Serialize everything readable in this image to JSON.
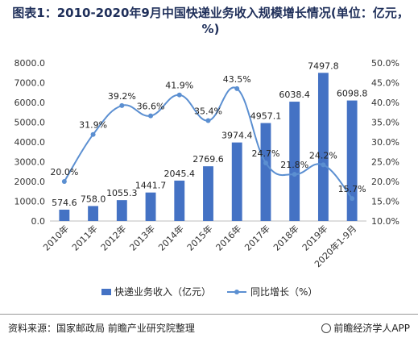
{
  "title": "图表1：2010-2020年9月中国快递业务收入规模增长情况(单位：亿元，%)",
  "footer": {
    "source": "资料来源：国家邮政局 前瞻产业研究院整理",
    "brand": "前瞻经济学人APP",
    "brand_icon": "brand-logo-icon"
  },
  "chart_data": {
    "type": "bar",
    "categories": [
      "2010年",
      "2011年",
      "2012年",
      "2013年",
      "2014年",
      "2015年",
      "2016年",
      "2017年",
      "2018年",
      "2019年",
      "2020年1-9月"
    ],
    "series": [
      {
        "name": "快递业务收入（亿元）",
        "type": "bar",
        "axis": "left",
        "values": [
          574.6,
          758.0,
          1055.3,
          1441.7,
          2045.4,
          2769.6,
          3974.4,
          4957.1,
          6038.4,
          7497.8,
          6098.8
        ],
        "labels": [
          "574.6",
          "758.0",
          "1055.3",
          "1441.7",
          "2045.4",
          "2769.6",
          "3974.4",
          "4957.1",
          "6038.4",
          "7497.8",
          "6098.8"
        ],
        "color": "#4472c4"
      },
      {
        "name": "同比增长（%）",
        "type": "line",
        "axis": "right",
        "values": [
          20.0,
          31.9,
          39.2,
          36.6,
          41.9,
          35.4,
          43.5,
          24.7,
          21.8,
          24.2,
          15.7
        ],
        "labels": [
          "20.0%",
          "31.9%",
          "39.2%",
          "36.6%",
          "41.9%",
          "35.4%",
          "43.5%",
          "24.7%",
          "21.8%",
          "24.2%",
          "15.7%"
        ],
        "color": "#5b8fd1"
      }
    ],
    "y_left": {
      "ylim": [
        0,
        8000
      ],
      "ticks": [
        0,
        1000,
        2000,
        3000,
        4000,
        5000,
        6000,
        7000,
        8000
      ],
      "tick_labels": [
        "0.0",
        "1000.0",
        "2000.0",
        "3000.0",
        "4000.0",
        "5000.0",
        "6000.0",
        "7000.0",
        "8000.0"
      ]
    },
    "y_right": {
      "ylim": [
        10,
        50
      ],
      "ticks": [
        10,
        15,
        20,
        25,
        30,
        35,
        40,
        45,
        50
      ],
      "tick_labels": [
        "10.0%",
        "15.0%",
        "20.0%",
        "25.0%",
        "30.0%",
        "35.0%",
        "40.0%",
        "45.0%",
        "50.0%"
      ]
    },
    "grid": false,
    "legend_position": "bottom"
  }
}
